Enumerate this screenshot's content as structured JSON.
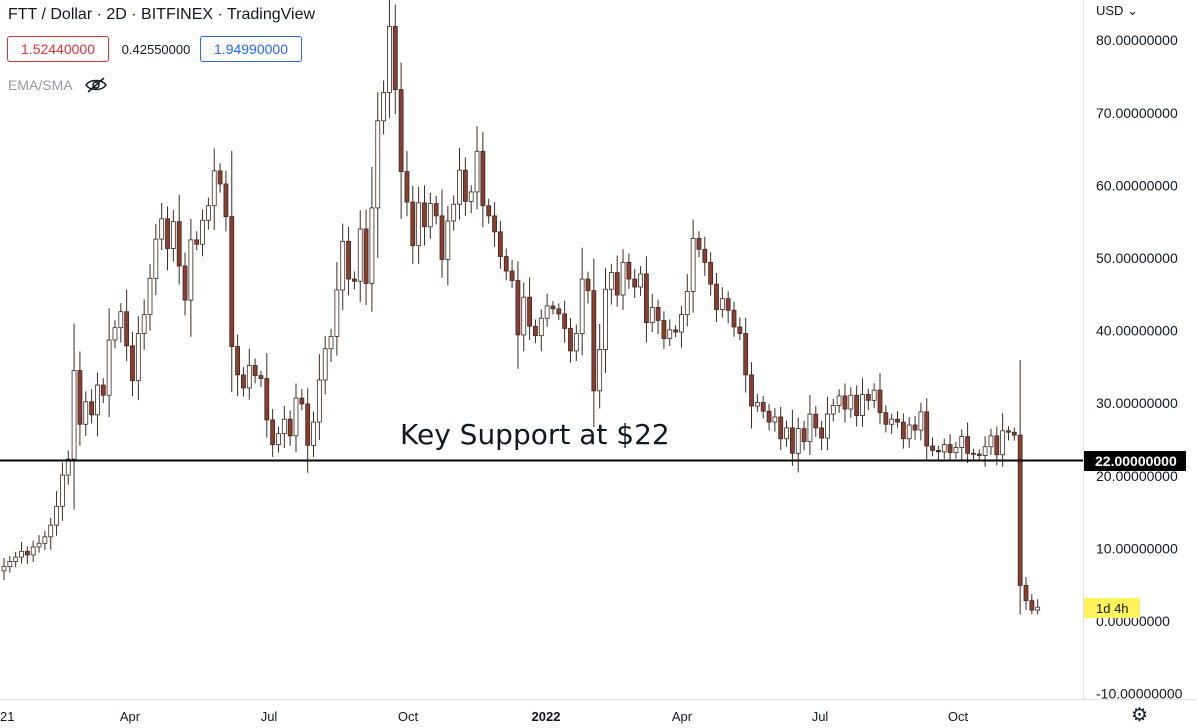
{
  "header": {
    "title": "FTT / Dollar · 2D · BITFINEX · TradingView",
    "open_value": "1.52440000",
    "mid_value": "0.42550000",
    "close_value": "1.94990000",
    "indicator_label": "EMA/SMA",
    "currency": "USD"
  },
  "colors": {
    "up": "#ffffff",
    "down": "#8b3e2f",
    "wick": "#3a2a22",
    "support_line": "#000000",
    "countdown_bg": "#fff35c"
  },
  "chart_data": {
    "type": "candlestick",
    "title": "FTT / Dollar · 2D · BITFINEX · TradingView",
    "xlabel": "",
    "ylabel": "",
    "ylim": [
      -10,
      82
    ],
    "y_ticks": [
      "80.00000000",
      "70.00000000",
      "60.00000000",
      "50.00000000",
      "40.00000000",
      "30.00000000",
      "20.00000000",
      "10.00000000",
      "0.00000000",
      "-10.00000000"
    ],
    "x_ticks": [
      "21",
      "Apr",
      "Jul",
      "Oct",
      "2022",
      "Apr",
      "Jul",
      "Oct"
    ],
    "support": {
      "value": 22,
      "label": "22.00000000",
      "annotation": "Key Support at $22"
    },
    "countdown": "1d 4h",
    "closes": [
      7.5,
      8.2,
      8.8,
      9.6,
      9.1,
      10.2,
      10.7,
      11.6,
      13.2,
      15.8,
      20.1,
      22.3,
      34.5,
      27.1,
      30.2,
      28.4,
      32.5,
      31.1,
      38.7,
      40.4,
      42.6,
      37.9,
      33.1,
      39.6,
      42.2,
      47.2,
      52.6,
      55.4,
      51.3,
      55.0,
      48.9,
      44.2,
      52.5,
      51.9,
      55.2,
      57.2,
      62.0,
      60.2,
      55.7,
      37.8,
      33.9,
      32.1,
      35.2,
      33.8,
      33.4,
      27.7,
      24.3,
      25.8,
      27.8,
      25.5,
      30.7,
      29.9,
      24.2,
      27.4,
      33.2,
      37.5,
      39.2,
      45.6,
      52.3,
      47.1,
      46.8,
      54.0,
      46.5,
      56.9,
      68.9,
      72.8,
      81.9,
      73.2,
      61.9,
      57.7,
      51.7,
      57.6,
      54.3,
      57.5,
      55.8,
      49.8,
      55.1,
      57.4,
      62.1,
      57.8,
      59.1,
      64.7,
      57.2,
      55.8,
      53.6,
      50.2,
      48.2,
      46.9,
      39.4,
      44.6,
      40.6,
      39.3,
      41.7,
      43.4,
      43.0,
      42.3,
      40.3,
      37.2,
      39.6,
      47.1,
      45.5,
      31.7,
      37.4,
      45.7,
      48.0,
      44.9,
      49.4,
      47.1,
      46.0,
      47.8,
      41.1,
      43.2,
      41.4,
      38.9,
      40.1,
      39.8,
      42.2,
      45.4,
      52.7,
      51.2,
      49.4,
      46.4,
      42.9,
      44.4,
      42.8,
      40.5,
      39.6,
      33.9,
      29.6,
      30.1,
      28.9,
      27.4,
      28.1,
      25.1,
      26.6,
      23.1,
      26.5,
      24.7,
      28.5,
      26.6,
      25.2,
      28.5,
      29.7,
      31.0,
      29.2,
      31.1,
      28.3,
      31.2,
      30.4,
      31.8,
      28.7,
      27.1,
      27.8,
      27.4,
      25.1,
      27.0,
      26.3,
      28.8,
      24.1,
      23.5,
      23.3,
      24.3,
      23.2,
      23.9,
      25.4,
      23.1,
      23.0,
      22.8,
      24.0,
      25.5,
      22.9,
      26.2,
      26.0,
      25.6,
      4.9,
      2.8,
      1.5,
      1.9
    ]
  }
}
